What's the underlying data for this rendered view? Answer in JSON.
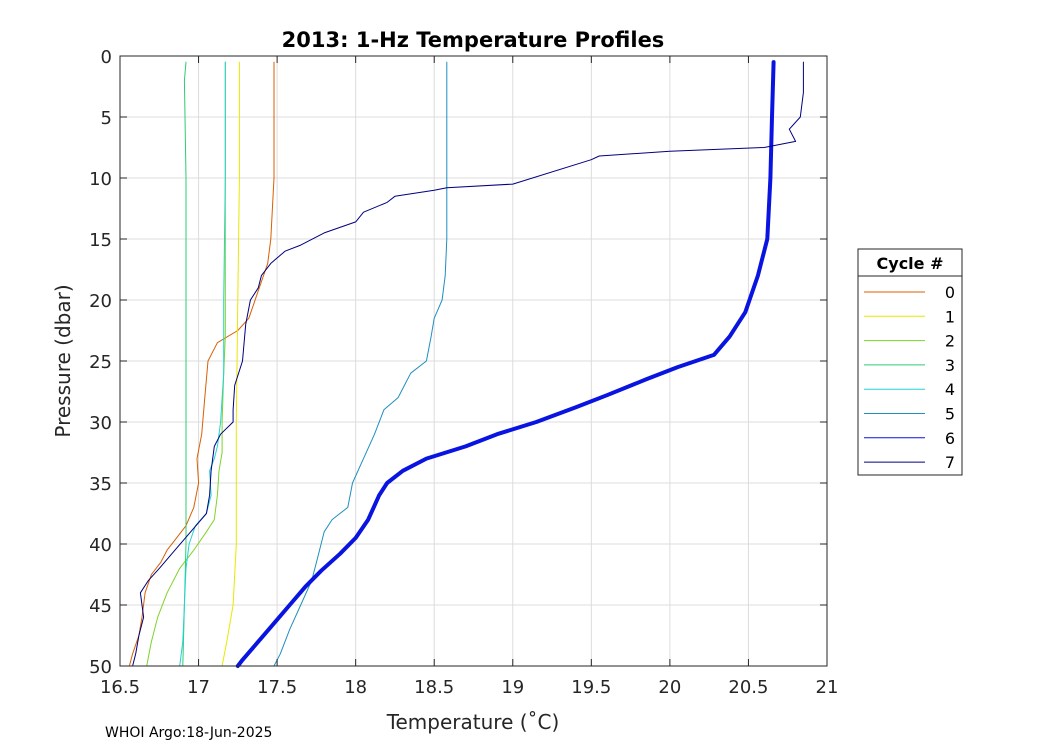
{
  "chart_data": {
    "type": "line",
    "title": "2013: 1-Hz Temperature Profiles",
    "xlabel": "Temperature (˚C)",
    "ylabel": "Pressure (dbar)",
    "xlim": [
      16.5,
      21
    ],
    "ylim": [
      0,
      50
    ],
    "y_reversed": true,
    "grid": true,
    "xticks": [
      "16.5",
      "17",
      "17.5",
      "18",
      "18.5",
      "19",
      "19.5",
      "20",
      "20.5",
      "21"
    ],
    "yticks": [
      "0",
      "5",
      "10",
      "15",
      "20",
      "25",
      "30",
      "35",
      "40",
      "45",
      "50"
    ],
    "legend": {
      "title": "Cycle #",
      "placement": "right"
    },
    "series": [
      {
        "name": "0",
        "color": "#d95f02",
        "points": [
          [
            17.48,
            0.5
          ],
          [
            17.48,
            10
          ],
          [
            17.46,
            15
          ],
          [
            17.44,
            17
          ],
          [
            17.4,
            18.5
          ],
          [
            17.36,
            20
          ],
          [
            17.32,
            21.5
          ],
          [
            17.25,
            22.5
          ],
          [
            17.12,
            23.5
          ],
          [
            17.06,
            25
          ],
          [
            17.04,
            28
          ],
          [
            17.02,
            31
          ],
          [
            16.99,
            33
          ],
          [
            17.0,
            35
          ],
          [
            16.97,
            37
          ],
          [
            16.92,
            38.5
          ],
          [
            16.86,
            39.5
          ],
          [
            16.8,
            40.5
          ],
          [
            16.76,
            41.5
          ],
          [
            16.7,
            42.5
          ],
          [
            16.66,
            44
          ],
          [
            16.64,
            46
          ],
          [
            16.62,
            47.5
          ],
          [
            16.58,
            49
          ],
          [
            16.56,
            50
          ]
        ]
      },
      {
        "name": "1",
        "color": "#e8e800",
        "points": [
          [
            17.26,
            0.5
          ],
          [
            17.26,
            10
          ],
          [
            17.25,
            20
          ],
          [
            17.24,
            30
          ],
          [
            17.24,
            40
          ],
          [
            17.22,
            45
          ],
          [
            17.18,
            48
          ],
          [
            17.15,
            50
          ]
        ]
      },
      {
        "name": "2",
        "color": "#7fd32a",
        "points": [
          [
            17.17,
            0.5
          ],
          [
            17.17,
            10
          ],
          [
            17.17,
            20
          ],
          [
            17.17,
            23
          ],
          [
            17.16,
            26
          ],
          [
            17.15,
            30
          ],
          [
            17.15,
            32.5
          ],
          [
            17.13,
            34
          ],
          [
            17.12,
            36
          ],
          [
            17.1,
            38
          ],
          [
            17.05,
            39
          ],
          [
            16.97,
            40.5
          ],
          [
            16.88,
            42
          ],
          [
            16.8,
            44
          ],
          [
            16.74,
            46
          ],
          [
            16.7,
            48
          ],
          [
            16.67,
            50
          ]
        ]
      },
      {
        "name": "3",
        "color": "#2ecc71",
        "points": [
          [
            16.92,
            0.5
          ],
          [
            16.91,
            2
          ],
          [
            16.92,
            10
          ],
          [
            16.92,
            20
          ],
          [
            16.92,
            30
          ],
          [
            16.92,
            40
          ],
          [
            16.91,
            45
          ],
          [
            16.9,
            50
          ]
        ]
      },
      {
        "name": "4",
        "color": "#22d3d3",
        "points": [
          [
            17.17,
            0.5
          ],
          [
            17.17,
            10
          ],
          [
            17.16,
            20
          ],
          [
            17.16,
            26
          ],
          [
            17.14,
            30
          ],
          [
            17.12,
            32
          ],
          [
            17.1,
            33
          ],
          [
            17.07,
            34
          ],
          [
            17.08,
            36
          ],
          [
            17.05,
            37.5
          ],
          [
            16.98,
            38.5
          ],
          [
            16.94,
            40
          ],
          [
            16.92,
            42
          ],
          [
            16.91,
            45
          ],
          [
            16.9,
            48
          ],
          [
            16.88,
            50
          ]
        ]
      },
      {
        "name": "5",
        "color": "#1f8fbf",
        "points": [
          [
            18.58,
            0.5
          ],
          [
            18.58,
            5
          ],
          [
            18.58,
            10
          ],
          [
            18.58,
            15
          ],
          [
            18.57,
            18
          ],
          [
            18.55,
            20
          ],
          [
            18.5,
            21.5
          ],
          [
            18.48,
            23
          ],
          [
            18.45,
            25
          ],
          [
            18.35,
            26
          ],
          [
            18.27,
            28
          ],
          [
            18.18,
            29
          ],
          [
            18.12,
            31
          ],
          [
            18.05,
            33
          ],
          [
            17.98,
            35
          ],
          [
            17.95,
            37
          ],
          [
            17.85,
            38
          ],
          [
            17.8,
            39
          ],
          [
            17.76,
            41
          ],
          [
            17.72,
            43
          ],
          [
            17.65,
            45
          ],
          [
            17.58,
            47
          ],
          [
            17.52,
            49
          ],
          [
            17.48,
            50
          ]
        ]
      },
      {
        "name": "6",
        "color": "#0a14e0",
        "bold": true,
        "points": [
          [
            20.66,
            0.5
          ],
          [
            20.65,
            5
          ],
          [
            20.64,
            10
          ],
          [
            20.62,
            15
          ],
          [
            20.56,
            18
          ],
          [
            20.48,
            21
          ],
          [
            20.38,
            23
          ],
          [
            20.28,
            24.5
          ],
          [
            20.05,
            25.5
          ],
          [
            19.85,
            26.5
          ],
          [
            19.6,
            27.8
          ],
          [
            19.4,
            28.8
          ],
          [
            19.15,
            30
          ],
          [
            18.9,
            31
          ],
          [
            18.7,
            32
          ],
          [
            18.45,
            33
          ],
          [
            18.3,
            34
          ],
          [
            18.2,
            35
          ],
          [
            18.15,
            36
          ],
          [
            18.08,
            38
          ],
          [
            18.0,
            39.5
          ],
          [
            17.9,
            40.8
          ],
          [
            17.78,
            42.2
          ],
          [
            17.68,
            43.5
          ],
          [
            17.58,
            45
          ],
          [
            17.48,
            46.5
          ],
          [
            17.38,
            48
          ],
          [
            17.28,
            49.5
          ],
          [
            17.25,
            50
          ]
        ]
      },
      {
        "name": "7",
        "color": "#000080",
        "points": [
          [
            20.85,
            0.5
          ],
          [
            20.85,
            3
          ],
          [
            20.83,
            5
          ],
          [
            20.76,
            6
          ],
          [
            20.8,
            7
          ],
          [
            20.6,
            7.5
          ],
          [
            20.0,
            7.8
          ],
          [
            19.55,
            8.2
          ],
          [
            19.5,
            8.5
          ],
          [
            19.0,
            10.5
          ],
          [
            18.58,
            10.8
          ],
          [
            18.5,
            11
          ],
          [
            18.25,
            11.5
          ],
          [
            18.2,
            12
          ],
          [
            18.05,
            12.8
          ],
          [
            18.0,
            13.6
          ],
          [
            17.8,
            14.5
          ],
          [
            17.65,
            15.5
          ],
          [
            17.55,
            16
          ],
          [
            17.46,
            17
          ],
          [
            17.4,
            18
          ],
          [
            17.38,
            19
          ],
          [
            17.33,
            20
          ],
          [
            17.3,
            22
          ],
          [
            17.28,
            25
          ],
          [
            17.23,
            27
          ],
          [
            17.22,
            29
          ],
          [
            17.22,
            30
          ],
          [
            17.14,
            31
          ],
          [
            17.1,
            32
          ],
          [
            17.08,
            34
          ],
          [
            17.07,
            36
          ],
          [
            17.05,
            37.5
          ],
          [
            16.95,
            39
          ],
          [
            16.85,
            40.5
          ],
          [
            16.75,
            42
          ],
          [
            16.68,
            43
          ],
          [
            16.63,
            44
          ],
          [
            16.64,
            45
          ],
          [
            16.65,
            46
          ],
          [
            16.62,
            47.5
          ],
          [
            16.6,
            49
          ],
          [
            16.58,
            50
          ]
        ]
      }
    ]
  },
  "footer": "WHOI Argo:18-Jun-2025"
}
